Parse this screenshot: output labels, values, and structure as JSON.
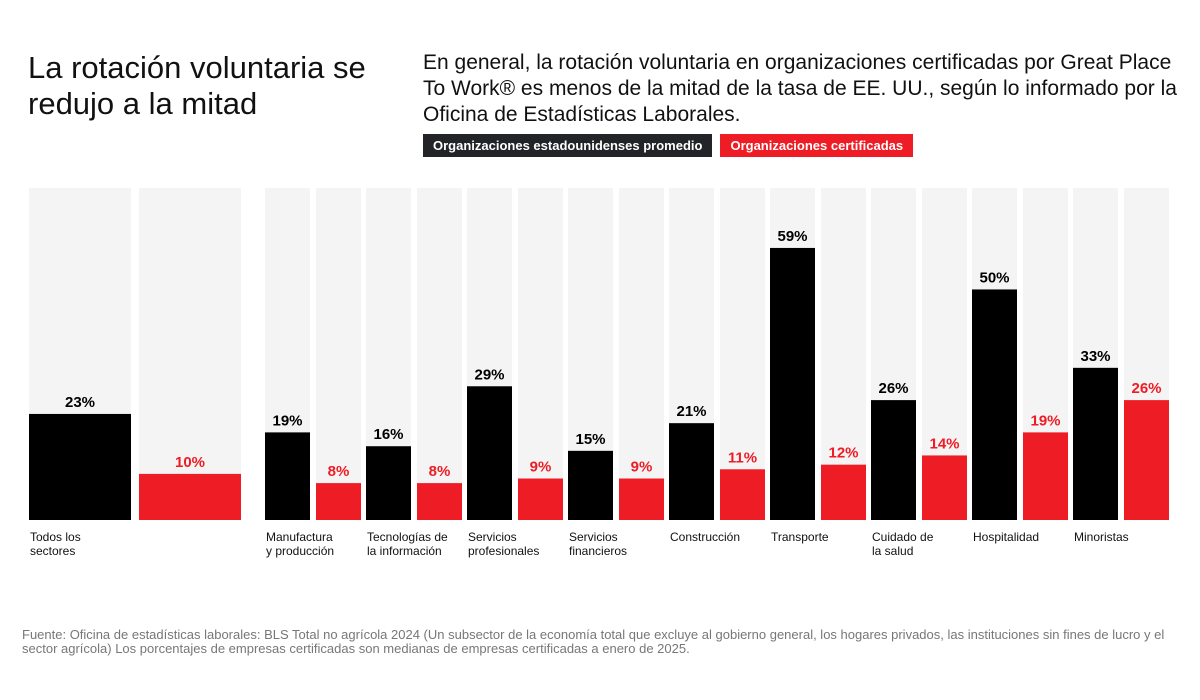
{
  "header": {
    "title": "La rotación voluntaria se redujo a la mitad",
    "subtitle": "En general, la rotación voluntaria en organizaciones certificadas por Great Place To Work® es menos de la mitad de la tasa de EE. UU., según lo informado por la Oficina de Estadísticas Laborales."
  },
  "colors": {
    "us": "#000000",
    "certified": "#ee1c24",
    "track": "#f4f4f4",
    "legend_us": "#222428"
  },
  "chart_data": {
    "type": "bar",
    "title": "La rotación voluntaria se redujo a la mitad",
    "ylim": [
      0,
      72
    ],
    "grid": false,
    "legend": "top",
    "categories": [
      [
        "Todos los",
        "sectores"
      ],
      [
        "Manufactura",
        "y producción"
      ],
      [
        "Tecnologías de",
        "la información"
      ],
      [
        "Servicios",
        "profesionales"
      ],
      [
        "Servicios",
        "financieros"
      ],
      [
        "Construcción"
      ],
      [
        "Transporte"
      ],
      [
        "Cuidado de",
        "la salud"
      ],
      [
        "Hospitalidad"
      ],
      [
        "Minoristas"
      ]
    ],
    "series": [
      {
        "name": "Organizaciones estadounidenses promedio",
        "values": [
          23,
          19,
          16,
          29,
          15,
          21,
          59,
          26,
          50,
          33
        ]
      },
      {
        "name": "Organizaciones certificadas",
        "values": [
          10,
          8,
          8,
          9,
          9,
          11,
          12,
          14,
          19,
          26
        ]
      }
    ],
    "value_suffix": "%"
  },
  "source": "Fuente: Oficina de estadísticas laborales: BLS Total no agrícola 2024 (Un subsector de la economía total que excluye al gobierno general, los hogares privados, las instituciones sin fines de lucro y el sector agrícola) Los porcentajes de empresas certificadas son medianas de empresas certificadas a enero de 2025."
}
